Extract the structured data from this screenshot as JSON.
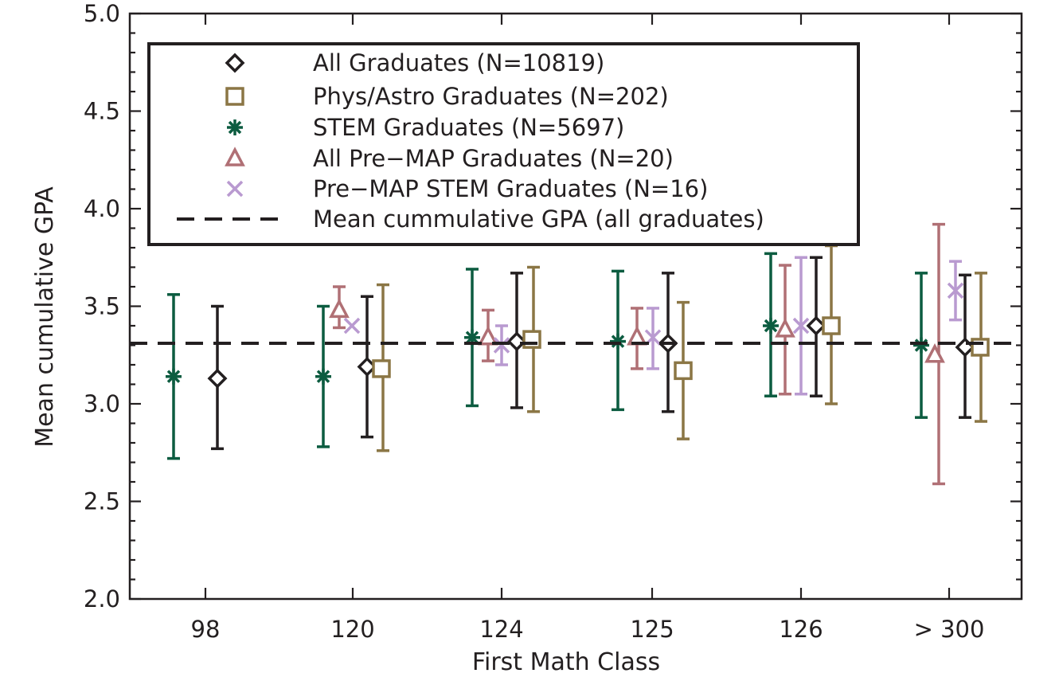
{
  "chart_data": {
    "type": "scatter",
    "title": "",
    "xlabel": "First Math Class",
    "ylabel": "Mean cumulative GPA",
    "categories": [
      "98",
      "120",
      "124",
      "125",
      "126",
      "> 300"
    ],
    "ylim": [
      2.0,
      5.0
    ],
    "yticks": [
      "2.0",
      "2.5",
      "3.0",
      "3.5",
      "4.0",
      "4.5",
      "5.0"
    ],
    "grid": false,
    "legend_position": "top-left",
    "reference_line": {
      "label": "Mean cummulative GPA (all graduates)",
      "value": 3.31,
      "style": "dashed",
      "color": "#231f20"
    },
    "series": [
      {
        "name": "All Graduates (N=10819)",
        "marker": "diamond",
        "color": "#231f20",
        "values": [
          3.13,
          3.19,
          3.32,
          3.31,
          3.4,
          3.29
        ],
        "error_low": [
          2.77,
          2.83,
          2.98,
          2.96,
          3.04,
          2.93
        ],
        "error_high": [
          3.5,
          3.55,
          3.67,
          3.67,
          3.75,
          3.66
        ]
      },
      {
        "name": "Phys/Astro Graduates (N=202)",
        "marker": "square",
        "color": "#8b7645",
        "values": [
          null,
          3.18,
          3.33,
          3.17,
          3.4,
          3.29
        ],
        "error_low": [
          null,
          2.76,
          2.96,
          2.82,
          3.0,
          2.91
        ],
        "error_high": [
          null,
          3.61,
          3.7,
          3.52,
          3.81,
          3.67
        ]
      },
      {
        "name": "STEM Graduates (N=5697)",
        "marker": "asterisk",
        "color": "#0c5c40",
        "values": [
          3.14,
          3.14,
          3.34,
          3.32,
          3.4,
          3.3
        ],
        "error_low": [
          2.72,
          2.78,
          2.99,
          2.97,
          3.04,
          2.93
        ],
        "error_high": [
          3.56,
          3.5,
          3.69,
          3.68,
          3.77,
          3.67
        ]
      },
      {
        "name": "All Pre−MAP Graduates (N=20)",
        "marker": "triangle",
        "color": "#b07075",
        "values": [
          null,
          3.48,
          3.34,
          3.34,
          3.38,
          3.25
        ],
        "error_low": [
          null,
          3.39,
          3.22,
          3.18,
          3.05,
          2.59
        ],
        "error_high": [
          null,
          3.6,
          3.48,
          3.49,
          3.71,
          3.92
        ]
      },
      {
        "name": "Pre−MAP STEM Graduates (N=16)",
        "marker": "x",
        "color": "#b99ad0",
        "values": [
          null,
          3.4,
          3.3,
          3.34,
          3.4,
          3.58
        ],
        "error_low": [
          null,
          null,
          3.2,
          3.18,
          3.05,
          3.43
        ],
        "error_high": [
          null,
          null,
          3.4,
          3.49,
          3.75,
          3.73
        ]
      }
    ]
  }
}
